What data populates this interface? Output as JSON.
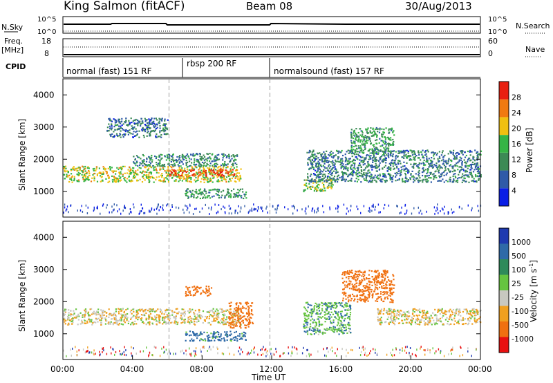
{
  "header": {
    "station": "King Salmon (fitACF)",
    "beam": "Beam 08",
    "date": "30/Aug/2013"
  },
  "aux_panels": {
    "nsky_label": "N.Sky",
    "nsky_ticks": [
      "10^5",
      "10^0"
    ],
    "nsearch_label": "N.Search",
    "nsearch_ticks": [
      "10^5",
      "10^0"
    ],
    "freq_label": "Freq.",
    "freq_unit": "[MHz]",
    "freq_ticks": [
      "18",
      "8"
    ],
    "nave_label": "Nave",
    "nave_ticks": [
      "60",
      "0"
    ],
    "cpid_label": "CPID",
    "cpid_modes": [
      "normal (fast) 151 RF",
      "rbsp 200 RF",
      "normalsound (fast) 157 RF"
    ]
  },
  "power_panel": {
    "ylabel": "Slant Range [km]",
    "yticks": [
      "4000",
      "3000",
      "2000",
      "1000"
    ],
    "colorbar_label": "Power [dB]",
    "colorbar_ticks": [
      "28",
      "24",
      "20",
      "16",
      "12",
      "8",
      "4"
    ],
    "colors": [
      "#0a1ee6",
      "#2f5aa8",
      "#3c8a55",
      "#35b545",
      "#f0c010",
      "#f07a10",
      "#e82010"
    ]
  },
  "velocity_panel": {
    "ylabel": "Slant Range [km]",
    "yticks": [
      "4000",
      "3000",
      "2000",
      "1000"
    ],
    "colorbar_label": "Velocity [m s",
    "colorbar_label_sup": "-1",
    "colorbar_label_end": "]",
    "colorbar_ticks": [
      "1000",
      "500",
      "100",
      "25",
      "-25",
      "-100",
      "-500",
      "-1000"
    ],
    "colors": [
      "#1f3ab0",
      "#2f6aa8",
      "#2f8a5a",
      "#66c440",
      "#c8c8c0",
      "#f0a020",
      "#f07010",
      "#e81010"
    ]
  },
  "xaxis": {
    "ticks": [
      "00:00",
      "04:00",
      "08:00",
      "12:00",
      "16:00",
      "20:00",
      "00:00"
    ],
    "label": "Time UT"
  },
  "chart_data": {
    "type": "heatmap",
    "x_unit": "hours UT",
    "xlim": [
      0,
      24
    ],
    "ylim_km": [
      200,
      4500
    ],
    "mode_changes_hours": [
      0,
      6.1,
      11.9
    ],
    "power_regions": [
      {
        "t0": 0.0,
        "t1": 10.2,
        "r0": 1300,
        "r1": 1800,
        "power_db": 18
      },
      {
        "t0": 6.0,
        "t1": 10.0,
        "r0": 1500,
        "r1": 1700,
        "power_db": 26
      },
      {
        "t0": 4.0,
        "t1": 10.0,
        "r0": 1800,
        "r1": 2200,
        "power_db": 10
      },
      {
        "t0": 2.5,
        "t1": 6.0,
        "r0": 2700,
        "r1": 3300,
        "power_db": 8
      },
      {
        "t0": 7.0,
        "t1": 10.5,
        "r0": 800,
        "r1": 1100,
        "power_db": 12
      },
      {
        "t0": 13.8,
        "t1": 15.5,
        "r0": 1000,
        "r1": 1400,
        "power_db": 16
      },
      {
        "t0": 14.0,
        "t1": 24.0,
        "r0": 1300,
        "r1": 2300,
        "power_db": 9
      },
      {
        "t0": 16.5,
        "t1": 19.0,
        "r0": 2200,
        "r1": 3000,
        "power_db": 12
      }
    ],
    "velocity_regions": [
      {
        "t0": 0.0,
        "t1": 10.2,
        "r0": 1300,
        "r1": 1800,
        "velocity_ms": 0
      },
      {
        "t0": 7.0,
        "t1": 10.5,
        "r0": 800,
        "r1": 1100,
        "velocity_ms": 150
      },
      {
        "t0": 9.5,
        "t1": 10.9,
        "r0": 1200,
        "r1": 2000,
        "velocity_ms": -400
      },
      {
        "t0": 7.0,
        "t1": 8.5,
        "r0": 2200,
        "r1": 2500,
        "velocity_ms": -300
      },
      {
        "t0": 13.8,
        "t1": 16.5,
        "r0": 1000,
        "r1": 2000,
        "velocity_ms": 80
      },
      {
        "t0": 16.0,
        "t1": 19.0,
        "r0": 2000,
        "r1": 3000,
        "velocity_ms": -200
      },
      {
        "t0": 18.0,
        "t1": 24.0,
        "r0": 1300,
        "r1": 1800,
        "velocity_ms": 0
      }
    ]
  }
}
